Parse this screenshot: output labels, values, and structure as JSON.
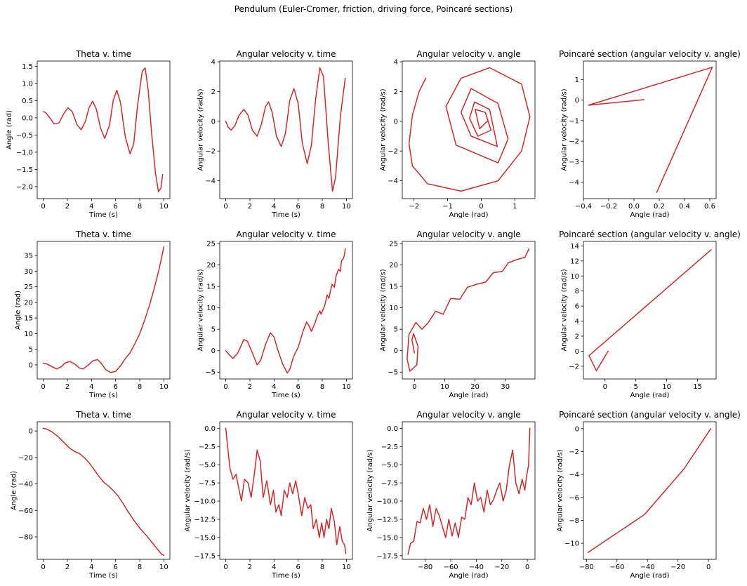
{
  "figure": {
    "title": "Pendulum (Euler-Cromer, friction, driving force, Poincaré sections)",
    "line_color": "#d62728"
  },
  "chart_data": [
    {
      "type": "line",
      "title": "Theta v. time",
      "xlabel": "Time (s)",
      "ylabel": "Angle (rad)",
      "xlim": [
        -0.5,
        10.5
      ],
      "ylim": [
        -2.35,
        1.65
      ],
      "xticks": [
        0,
        2,
        4,
        6,
        8,
        10
      ],
      "xticklabels": [
        "0",
        "2",
        "4",
        "6",
        "8",
        "10"
      ],
      "yticks": [
        -2.0,
        -1.5,
        -1.0,
        -0.5,
        0.0,
        0.5,
        1.0,
        1.5
      ],
      "yticklabels": [
        "−2.0",
        "−1.5",
        "−1.0",
        "−0.5",
        "0.0",
        "0.5",
        "1.0",
        "1.5"
      ],
      "x": [
        0,
        0.2,
        0.5,
        0.9,
        1.3,
        1.7,
        2.05,
        2.4,
        2.8,
        3.15,
        3.5,
        3.8,
        4.1,
        4.4,
        4.75,
        5.1,
        5.5,
        5.8,
        6.1,
        6.4,
        6.8,
        7.2,
        7.5,
        7.8,
        8.2,
        8.45,
        8.7,
        9.0,
        9.3,
        9.55,
        9.75,
        9.9
      ],
      "y": [
        0.18,
        0.15,
        0.02,
        -0.18,
        -0.15,
        0.12,
        0.29,
        0.18,
        -0.2,
        -0.35,
        -0.1,
        0.3,
        0.48,
        0.25,
        -0.3,
        -0.6,
        -0.2,
        0.5,
        0.8,
        0.45,
        -0.55,
        -1.05,
        -0.75,
        0.3,
        1.35,
        1.45,
        0.8,
        -0.5,
        -1.6,
        -2.15,
        -2.05,
        -1.65
      ]
    },
    {
      "type": "line",
      "title": "Angular velocity v. time",
      "xlabel": "Time (s)",
      "ylabel": "Angular velocity (rad/s)",
      "xlim": [
        -0.5,
        10.5
      ],
      "ylim": [
        -5.2,
        4.05
      ],
      "xticks": [
        0,
        2,
        4,
        6,
        8,
        10
      ],
      "xticklabels": [
        "0",
        "2",
        "4",
        "6",
        "8",
        "10"
      ],
      "yticks": [
        -4,
        -2,
        0,
        2,
        4
      ],
      "yticklabels": [
        "−4",
        "−2",
        "0",
        "2",
        "4"
      ],
      "x": [
        0,
        0.2,
        0.45,
        0.75,
        1.1,
        1.5,
        1.85,
        2.2,
        2.6,
        2.95,
        3.3,
        3.55,
        3.85,
        4.2,
        4.6,
        4.95,
        5.3,
        5.65,
        6.0,
        6.35,
        6.75,
        7.1,
        7.45,
        7.8,
        8.1,
        8.5,
        8.85,
        9.1,
        9.5,
        9.9
      ],
      "y": [
        0,
        -0.4,
        -0.6,
        -0.3,
        0.4,
        0.8,
        0.4,
        -0.6,
        -1.0,
        -0.2,
        1.0,
        1.3,
        0.6,
        -1.0,
        -1.7,
        -0.8,
        1.4,
        2.2,
        1.2,
        -1.5,
        -2.85,
        -1.6,
        1.5,
        3.6,
        3.0,
        -1.5,
        -4.7,
        -3.8,
        0.3,
        2.9
      ]
    },
    {
      "type": "line",
      "title": "Angular velocity v. angle",
      "xlabel": "Angle (rad)",
      "ylabel": "Angular velocity (rad/s)",
      "xlim": [
        -2.35,
        1.6
      ],
      "ylim": [
        -5.2,
        4.05
      ],
      "xticks": [
        -2,
        -1,
        0,
        1
      ],
      "xticklabels": [
        "−2",
        "−1",
        "0",
        "1"
      ],
      "yticks": [
        -4,
        -2,
        0,
        2,
        4
      ],
      "yticklabels": [
        "−4",
        "−2",
        "0",
        "2",
        "4"
      ],
      "x": [
        -1.65,
        -1.85,
        -2.05,
        -2.15,
        -2.05,
        -1.6,
        -0.6,
        0.5,
        1.2,
        1.45,
        1.2,
        0.25,
        -0.6,
        -1.05,
        -0.75,
        0.5,
        0.8,
        0.5,
        -0.3,
        -0.6,
        -0.3,
        0.48,
        0.25,
        -0.2,
        -0.35,
        -0.1,
        0.29,
        0.12,
        -0.18,
        -0.05,
        0.18
      ],
      "y": [
        2.9,
        2.0,
        0.4,
        -1.5,
        -3.0,
        -4.2,
        -4.7,
        -4.0,
        -2.0,
        0.3,
        2.5,
        3.6,
        2.9,
        1.0,
        -1.6,
        -2.8,
        -1.2,
        1.2,
        2.2,
        0.6,
        -1.0,
        -1.7,
        0.8,
        1.3,
        0.2,
        -1.0,
        -0.6,
        0.6,
        0.8,
        -0.5,
        0
      ]
    },
    {
      "type": "line",
      "title": "Poincaré section (angular velocity v. angle)",
      "xlabel": "Angle (rad)",
      "ylabel": "Angular velocity (rad/s)",
      "xlim": [
        -0.4,
        0.65
      ],
      "ylim": [
        -4.8,
        1.9
      ],
      "xticks": [
        -0.4,
        -0.2,
        0.0,
        0.2,
        0.4,
        0.6
      ],
      "xticklabels": [
        "−0.4",
        "−0.2",
        "0.0",
        "0.2",
        "0.4",
        "0.6"
      ],
      "yticks": [
        -4,
        -3,
        -2,
        -1,
        0,
        1
      ],
      "yticklabels": [
        "−4",
        "−3",
        "−2",
        "−1",
        "0",
        "1"
      ],
      "x": [
        0.18,
        0.62,
        -0.36,
        0.08
      ],
      "y": [
        -4.5,
        1.6,
        -0.25,
        0.02
      ]
    },
    {
      "type": "line",
      "title": "Theta v. time",
      "xlabel": "Time (s)",
      "ylabel": "Angle (rad)",
      "xlim": [
        -0.5,
        10.5
      ],
      "ylim": [
        -4.5,
        39.5
      ],
      "xticks": [
        0,
        2,
        4,
        6,
        8,
        10
      ],
      "xticklabels": [
        "0",
        "2",
        "4",
        "6",
        "8",
        "10"
      ],
      "yticks": [
        0,
        5,
        10,
        15,
        20,
        25,
        30,
        35
      ],
      "yticklabels": [
        "0",
        "5",
        "10",
        "15",
        "20",
        "25",
        "30",
        "35"
      ],
      "x": [
        0,
        0.3,
        0.7,
        1.1,
        1.5,
        1.8,
        2.2,
        2.6,
        3.0,
        3.3,
        3.7,
        4.1,
        4.5,
        4.8,
        5.2,
        5.6,
        6.0,
        6.4,
        6.8,
        7.2,
        7.6,
        8.0,
        8.4,
        8.8,
        9.2,
        9.6,
        10.0
      ],
      "y": [
        0.6,
        0.3,
        -0.5,
        -1.3,
        -0.6,
        0.6,
        1.1,
        0.3,
        -1.0,
        -1.3,
        -0.2,
        1.3,
        1.7,
        0.5,
        -1.6,
        -2.4,
        -2.1,
        -0.3,
        2.0,
        3.9,
        6.8,
        10.0,
        14.2,
        19.0,
        24.5,
        30.5,
        37.8
      ]
    },
    {
      "type": "line",
      "title": "Angular velocity v. time",
      "xlabel": "Time (s)",
      "ylabel": "Angular velocity (rad/s)",
      "xlim": [
        -0.5,
        10.5
      ],
      "ylim": [
        -6.6,
        25.5
      ],
      "xticks": [
        0,
        2,
        4,
        6,
        8,
        10
      ],
      "xticklabels": [
        "0",
        "2",
        "4",
        "6",
        "8",
        "10"
      ],
      "yticks": [
        -5,
        0,
        5,
        10,
        15,
        20,
        25
      ],
      "yticklabels": [
        "−5",
        "0",
        "5",
        "10",
        "15",
        "20",
        "25"
      ],
      "x": [
        0,
        0.3,
        0.6,
        1.0,
        1.5,
        1.8,
        2.2,
        2.6,
        2.9,
        3.3,
        3.7,
        4.0,
        4.3,
        4.7,
        5.1,
        5.3,
        5.6,
        6.0,
        6.4,
        6.7,
        6.9,
        7.1,
        7.4,
        7.6,
        7.8,
        7.9,
        8.2,
        8.4,
        8.55,
        8.8,
        9.0,
        9.15,
        9.35,
        9.5,
        9.6,
        9.75,
        9.85,
        9.9
      ],
      "y": [
        0,
        -1.0,
        -1.8,
        -0.5,
        2.6,
        2.2,
        -0.5,
        -3.3,
        -2.2,
        1.5,
        4.2,
        3.2,
        0.3,
        -3.0,
        -5.2,
        -4.4,
        -1.5,
        0.8,
        4.5,
        6.7,
        5.8,
        4.5,
        6.5,
        8.2,
        9.3,
        8.5,
        10.5,
        13.0,
        12.2,
        15.5,
        14.8,
        17.5,
        19.0,
        18.5,
        21.0,
        21.5,
        22.5,
        23.8
      ]
    },
    {
      "type": "line",
      "title": "Angular velocity v. angle",
      "xlabel": "Angle (rad)",
      "ylabel": "Angular velocity (rad/s)",
      "xlim": [
        -4.0,
        39.8
      ],
      "ylim": [
        -6.6,
        25.5
      ],
      "xticks": [
        0,
        10,
        20,
        30
      ],
      "xticklabels": [
        "0",
        "10",
        "20",
        "30"
      ],
      "yticks": [
        -5,
        0,
        5,
        10,
        15,
        20,
        25
      ],
      "yticklabels": [
        "−5",
        "0",
        "5",
        "10",
        "15",
        "20",
        "25"
      ],
      "x": [
        0,
        -0.8,
        -0.3,
        1.2,
        0.8,
        -1.5,
        -2.4,
        -1.8,
        0.5,
        2.5,
        4.5,
        7.0,
        9.5,
        12.0,
        15.0,
        17.5,
        20.5,
        23.5,
        26.0,
        29.0,
        31.0,
        34.0,
        36.5,
        37.8
      ],
      "y": [
        -0.5,
        2.5,
        4.0,
        1.0,
        -3.3,
        -4.8,
        -2.0,
        3.8,
        6.6,
        5.0,
        6.5,
        9.2,
        8.5,
        12.2,
        12.0,
        14.8,
        15.5,
        16.0,
        18.2,
        18.5,
        20.5,
        21.3,
        21.8,
        23.8
      ]
    },
    {
      "type": "line",
      "title": "Poincaré section (angular velocity v. angle)",
      "xlabel": "Angle (rad)",
      "ylabel": "Angular velocity (rad/s)",
      "xlim": [
        -3.5,
        18.0
      ],
      "ylim": [
        -3.7,
        14.6
      ],
      "xticks": [
        0,
        5,
        10,
        15
      ],
      "xticklabels": [
        "0",
        "5",
        "10",
        "15"
      ],
      "yticks": [
        -2,
        0,
        2,
        4,
        6,
        8,
        10,
        12,
        14
      ],
      "yticklabels": [
        "−2",
        "0",
        "2",
        "4",
        "6",
        "8",
        "10",
        "12",
        "14"
      ],
      "x": [
        17.2,
        -2.6,
        -1.4,
        0.5
      ],
      "y": [
        13.5,
        -0.6,
        -2.6,
        0
      ]
    },
    {
      "type": "line",
      "title": "Theta v. time",
      "xlabel": "Time (s)",
      "ylabel": "Angle (rad)",
      "xlim": [
        -0.5,
        10.5
      ],
      "ylim": [
        -97.0,
        7.0
      ],
      "xticks": [
        0,
        2,
        4,
        6,
        8,
        10
      ],
      "xticklabels": [
        "0",
        "2",
        "4",
        "6",
        "8",
        "10"
      ],
      "yticks": [
        -80,
        -60,
        -40,
        -20,
        0
      ],
      "yticklabels": [
        "−80",
        "−60",
        "−40",
        "−20",
        "0"
      ],
      "x": [
        0,
        0.3,
        0.7,
        1.2,
        1.7,
        2.2,
        2.6,
        3.0,
        3.4,
        3.8,
        4.2,
        4.6,
        5.0,
        5.4,
        5.8,
        6.2,
        6.6,
        7.0,
        7.4,
        7.8,
        8.2,
        8.6,
        9.0,
        9.4,
        9.8,
        10.0
      ],
      "y": [
        2,
        1.5,
        -0.5,
        -4.0,
        -8.5,
        -13.0,
        -15.5,
        -17.0,
        -20.0,
        -24.0,
        -29.0,
        -34.0,
        -38.5,
        -41.5,
        -45.0,
        -49.0,
        -54.5,
        -60.5,
        -66.0,
        -71.0,
        -75.5,
        -79.5,
        -84.0,
        -88.5,
        -93.0,
        -94.0
      ]
    },
    {
      "type": "line",
      "title": "Angular velocity v. time",
      "xlabel": "Time (s)",
      "ylabel": "Angular velocity (rad/s)",
      "xlim": [
        -0.5,
        10.5
      ],
      "ylim": [
        -18.0,
        0.9
      ],
      "xticks": [
        0,
        2,
        4,
        6,
        8,
        10
      ],
      "xticklabels": [
        "0",
        "2",
        "4",
        "6",
        "8",
        "10"
      ],
      "yticks": [
        -17.5,
        -15.0,
        -12.5,
        -10.0,
        -7.5,
        -5.0,
        -2.5,
        0.0
      ],
      "yticklabels": [
        "−17.5",
        "−15.0",
        "−12.5",
        "−10.0",
        "−7.5",
        "−5.0",
        "−2.5",
        "0.0"
      ],
      "x": [
        0,
        0.15,
        0.35,
        0.6,
        0.85,
        1.05,
        1.3,
        1.55,
        1.85,
        2.1,
        2.35,
        2.6,
        2.85,
        3.1,
        3.4,
        3.7,
        3.95,
        4.15,
        4.4,
        4.6,
        4.85,
        5.1,
        5.3,
        5.55,
        5.8,
        6.0,
        6.3,
        6.55,
        6.8,
        7.05,
        7.25,
        7.5,
        7.75,
        7.95,
        8.15,
        8.35,
        8.55,
        8.75,
        9.0,
        9.2,
        9.45,
        9.65,
        9.85,
        9.95
      ],
      "y": [
        0,
        -2.5,
        -5.5,
        -7.0,
        -6.3,
        -8.0,
        -10.0,
        -7.0,
        -7.5,
        -9.5,
        -6.5,
        -3.0,
        -4.5,
        -9.5,
        -7.2,
        -10.5,
        -8.5,
        -11.5,
        -10.5,
        -12.0,
        -8.5,
        -9.5,
        -7.5,
        -9.0,
        -7.2,
        -9.0,
        -12.0,
        -9.5,
        -11.0,
        -10.5,
        -13.8,
        -12.5,
        -15.0,
        -13.0,
        -15.0,
        -12.5,
        -13.8,
        -11.0,
        -12.8,
        -16.0,
        -13.5,
        -15.5,
        -16.0,
        -17.2
      ]
    },
    {
      "type": "line",
      "title": "Angular velocity v. angle",
      "xlabel": "Angle (rad)",
      "ylabel": "Angular velocity (rad/s)",
      "xlim": [
        -98.0,
        6.0
      ],
      "ylim": [
        -18.0,
        0.9
      ],
      "xticks": [
        -80,
        -60,
        -40,
        -20,
        0
      ],
      "xticklabels": [
        "−80",
        "−60",
        "−40",
        "−20",
        "0"
      ],
      "yticks": [
        -17.5,
        -15.0,
        -12.5,
        -10.0,
        -7.5,
        -5.0,
        -2.5,
        0.0
      ],
      "yticklabels": [
        "−17.5",
        "−15.0",
        "−12.5",
        "−10.0",
        "−7.5",
        "−5.0",
        "−2.5",
        "0.0"
      ],
      "x": [
        -93.5,
        -91.5,
        -89.0,
        -86.5,
        -84.0,
        -81.5,
        -79.0,
        -76.5,
        -74.0,
        -71.5,
        -69.0,
        -66.5,
        -64.0,
        -61.5,
        -59.0,
        -56.5,
        -54.0,
        -51.5,
        -49.0,
        -46.5,
        -44.0,
        -41.5,
        -39.0,
        -36.5,
        -34.0,
        -31.5,
        -29.0,
        -26.5,
        -24.0,
        -21.5,
        -19.0,
        -16.5,
        -14.0,
        -11.5,
        -9.0,
        -6.5,
        -4.0,
        -2.0,
        -0.5,
        1.0,
        2.0
      ],
      "y": [
        -17.3,
        -15.8,
        -15.5,
        -12.8,
        -13.0,
        -11.0,
        -12.5,
        -10.5,
        -13.5,
        -11.0,
        -12.0,
        -13.5,
        -15.0,
        -12.5,
        -14.8,
        -13.0,
        -15.0,
        -12.2,
        -12.5,
        -9.5,
        -10.5,
        -7.5,
        -10.0,
        -9.5,
        -11.5,
        -8.5,
        -10.5,
        -9.8,
        -8.5,
        -7.5,
        -10.0,
        -8.5,
        -5.0,
        -3.0,
        -7.5,
        -9.0,
        -7.0,
        -8.5,
        -6.5,
        -5.0,
        0.0
      ]
    },
    {
      "type": "line",
      "title": "Poincaré section (angular velocity v. angle)",
      "xlabel": "Angle (rad)",
      "ylabel": "Angular velocity (rad/s)",
      "xlim": [
        -82.0,
        5.0
      ],
      "ylim": [
        -11.4,
        0.6
      ],
      "xticks": [
        -80,
        -60,
        -40,
        -20,
        0
      ],
      "xticklabels": [
        "−80",
        "−60",
        "−40",
        "−20",
        "0"
      ],
      "yticks": [
        -10,
        -8,
        -6,
        -4,
        -2,
        0
      ],
      "yticklabels": [
        "−10",
        "−8",
        "−6",
        "−4",
        "−2",
        "0"
      ],
      "x": [
        -79.0,
        -42.0,
        -16.0,
        1.5
      ],
      "y": [
        -10.8,
        -7.5,
        -3.5,
        0.0
      ]
    }
  ]
}
